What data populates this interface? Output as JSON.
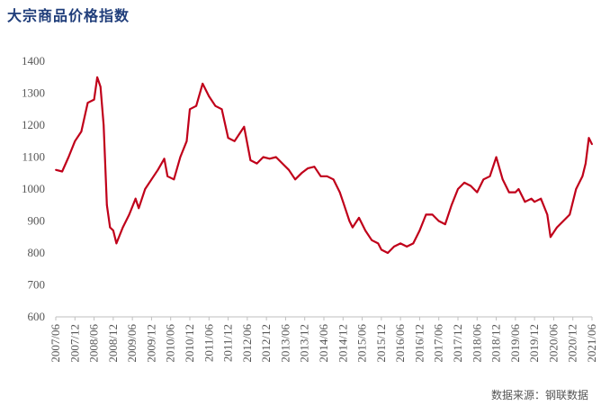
{
  "title": "大宗商品价格指数",
  "source": "数据来源：钢联数据",
  "chart_data": {
    "type": "line",
    "title": "大宗商品价格指数",
    "xlabel": "",
    "ylabel": "",
    "ylim": [
      600,
      1400
    ],
    "yticks": [
      600,
      700,
      800,
      900,
      1000,
      1100,
      1200,
      1300,
      1400
    ],
    "xticks": [
      "2007/06",
      "2007/12",
      "2008/06",
      "2008/12",
      "2009/06",
      "2009/12",
      "2010/06",
      "2010/12",
      "2011/06",
      "2011/12",
      "2012/06",
      "2012/12",
      "2013/06",
      "2013/12",
      "2014/06",
      "2014/12",
      "2015/06",
      "2015/12",
      "2016/06",
      "2016/12",
      "2017/06",
      "2017/12",
      "2018/06",
      "2018/12",
      "2019/06",
      "2019/12",
      "2020/06",
      "2020/12",
      "2021/06"
    ],
    "grid": false,
    "color": "#c0001a",
    "series": [
      {
        "x": [
          "2007/06",
          "2007/08",
          "2007/10",
          "2007/12",
          "2008/02",
          "2008/04",
          "2008/06",
          "2008/07",
          "2008/08",
          "2008/09",
          "2008/10",
          "2008/11",
          "2008/12",
          "2009/01",
          "2009/03",
          "2009/05",
          "2009/07",
          "2009/08",
          "2009/10",
          "2009/12",
          "2010/02",
          "2010/04",
          "2010/05",
          "2010/07",
          "2010/09",
          "2010/11",
          "2010/12",
          "2011/02",
          "2011/04",
          "2011/06",
          "2011/08",
          "2011/10",
          "2011/12",
          "2012/02",
          "2012/04",
          "2012/05",
          "2012/07",
          "2012/09",
          "2012/11",
          "2013/01",
          "2013/03",
          "2013/05",
          "2013/07",
          "2013/09",
          "2013/11",
          "2014/01",
          "2014/03",
          "2014/05",
          "2014/07",
          "2014/09",
          "2014/11",
          "2014/12",
          "2015/02",
          "2015/03",
          "2015/05",
          "2015/07",
          "2015/09",
          "2015/11",
          "2015/12",
          "2016/02",
          "2016/04",
          "2016/06",
          "2016/08",
          "2016/10",
          "2016/12",
          "2017/02",
          "2017/04",
          "2017/06",
          "2017/08",
          "2017/10",
          "2017/12",
          "2018/02",
          "2018/04",
          "2018/06",
          "2018/08",
          "2018/10",
          "2018/12",
          "2019/02",
          "2019/04",
          "2019/06",
          "2019/07",
          "2019/09",
          "2019/11",
          "2019/12",
          "2020/02",
          "2020/04",
          "2020/05",
          "2020/07",
          "2020/09",
          "2020/11",
          "2021/01",
          "2021/03",
          "2021/04",
          "2021/05",
          "2021/06"
        ],
        "values": [
          1060,
          1055,
          1100,
          1150,
          1180,
          1270,
          1280,
          1350,
          1320,
          1200,
          950,
          880,
          870,
          830,
          880,
          920,
          970,
          940,
          1000,
          1030,
          1060,
          1095,
          1040,
          1030,
          1100,
          1150,
          1250,
          1260,
          1330,
          1290,
          1260,
          1250,
          1160,
          1150,
          1180,
          1195,
          1090,
          1080,
          1100,
          1095,
          1100,
          1080,
          1060,
          1030,
          1050,
          1065,
          1070,
          1040,
          1040,
          1030,
          990,
          960,
          900,
          880,
          910,
          870,
          840,
          830,
          810,
          800,
          820,
          830,
          820,
          830,
          870,
          920,
          920,
          900,
          890,
          950,
          1000,
          1020,
          1010,
          990,
          1030,
          1040,
          1100,
          1030,
          990,
          990,
          1000,
          960,
          970,
          960,
          970,
          920,
          850,
          880,
          900,
          920,
          1000,
          1040,
          1080,
          1160,
          1140
        ]
      }
    ]
  }
}
